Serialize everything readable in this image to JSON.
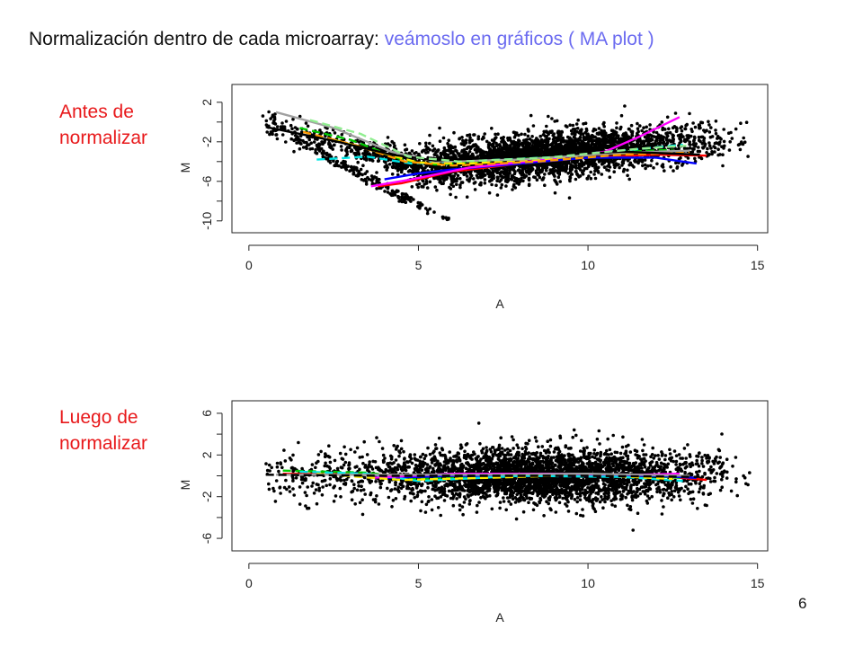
{
  "title": {
    "main": "Normalización dentro de cada microarray:",
    "accent": "veámoslo en gráficos ( MA plot )"
  },
  "colors": {
    "title": "#111111",
    "accent": "#6b6bf0",
    "panel_label": "#e8191b",
    "points": "#000000",
    "loess_lines": [
      "#ff0000",
      "#00c800",
      "#0000ff",
      "#00e5e5",
      "#ff00ff",
      "#ffee00",
      "#a0a0a0",
      "#ff9900",
      "#000000",
      "#90ee90"
    ]
  },
  "panels": [
    {
      "label_line1": "Antes de",
      "label_line2": "normalizar"
    },
    {
      "label_line1": "Luego de",
      "label_line2": "normalizar"
    }
  ],
  "page_number": "6",
  "chart_data": [
    {
      "type": "scatter",
      "xlabel": "A",
      "ylabel": "M",
      "xlim": [
        -0.5,
        15.3
      ],
      "ylim": [
        -11.2,
        3.8
      ],
      "x_ticks": [
        "0",
        "5",
        "10",
        "15"
      ],
      "x_tick_values": [
        0,
        5,
        10,
        15
      ],
      "y_ticks": [
        "2",
        "-2",
        "-6",
        "-10"
      ],
      "y_tick_values": [
        2,
        -2,
        -6,
        -10
      ],
      "y_minor_ticks": [
        0,
        -4,
        -8
      ],
      "grid": false,
      "legend": "none",
      "point_cloud": {
        "description_values": "dense black points, MA plot before normalization",
        "center_A": 8.5,
        "trend_M_at_A": [
          [
            1,
            -0.5
          ],
          [
            3,
            -2.5
          ],
          [
            5,
            -4.5
          ],
          [
            7,
            -4.0
          ],
          [
            9,
            -3.2
          ],
          [
            11,
            -2.6
          ],
          [
            13,
            -2.0
          ]
        ],
        "n_points": 3800
      },
      "loess_curves": [
        {
          "color": "#ff0000",
          "x": [
            3.8,
            4.5,
            5.0,
            6.0,
            8.0,
            10.0,
            12.0,
            13.5
          ],
          "y": [
            -6.5,
            -6.2,
            -5.8,
            -5.0,
            -4.2,
            -3.6,
            -3.3,
            -3.4
          ]
        },
        {
          "color": "#00c800",
          "x": [
            1.5,
            3.0,
            4.5,
            5.5,
            7.5,
            10.0,
            12.5
          ],
          "y": [
            -0.6,
            -1.8,
            -3.8,
            -4.3,
            -3.9,
            -3.2,
            -2.8
          ]
        },
        {
          "color": "#0000ff",
          "x": [
            4.0,
            5.0,
            6.0,
            8.0,
            10.0,
            12.0,
            13.2
          ],
          "y": [
            -5.8,
            -5.2,
            -4.8,
            -4.2,
            -3.6,
            -3.6,
            -4.2
          ]
        },
        {
          "color": "#00e5e5",
          "x": [
            2.0,
            3.5,
            4.8,
            6.0,
            8.5,
            11.0,
            12.8
          ],
          "y": [
            -3.8,
            -3.5,
            -4.2,
            -4.0,
            -3.6,
            -2.9,
            -2.3
          ]
        },
        {
          "color": "#ff00ff",
          "x": [
            3.6,
            4.8,
            6.5,
            8.5,
            10.5,
            11.5,
            12.7
          ],
          "y": [
            -6.5,
            -5.8,
            -4.6,
            -3.9,
            -3.0,
            -1.5,
            0.5
          ]
        },
        {
          "color": "#ffee00",
          "x": [
            2.5,
            3.8,
            5.0,
            6.5,
            8.5,
            10.5,
            12.5
          ],
          "y": [
            -1.8,
            -3.0,
            -4.1,
            -4.2,
            -3.8,
            -3.2,
            -3.0
          ]
        },
        {
          "color": "#a0a0a0",
          "x": [
            0.8,
            2.5,
            4.2,
            5.5,
            8.0,
            11.0,
            13.0
          ],
          "y": [
            1.0,
            -0.6,
            -3.0,
            -4.0,
            -3.8,
            -3.1,
            -2.9
          ]
        },
        {
          "color": "#ff9900",
          "x": [
            1.6,
            3.2,
            4.6,
            6.0,
            8.5,
            11.0,
            13.0
          ],
          "y": [
            -1.0,
            -2.4,
            -4.0,
            -4.4,
            -4.0,
            -3.3,
            -3.1
          ]
        },
        {
          "color": "#000000",
          "x": [
            0.5,
            2.5,
            4.2,
            5.5,
            8.0,
            11.0,
            13.3
          ],
          "y": [
            -0.5,
            -1.9,
            -3.3,
            -3.9,
            -3.5,
            -3.0,
            -3.3
          ]
        },
        {
          "color": "#90ee90",
          "x": [
            1.8,
            3.3,
            4.7,
            6.2,
            8.8,
            11.5,
            12.9
          ],
          "y": [
            0.2,
            -1.2,
            -3.5,
            -4.0,
            -3.6,
            -2.7,
            -2.4
          ]
        }
      ]
    },
    {
      "type": "scatter",
      "xlabel": "A",
      "ylabel": "M",
      "xlim": [
        -0.5,
        15.3
      ],
      "ylim": [
        -7.2,
        7.2
      ],
      "x_ticks": [
        "0",
        "5",
        "10",
        "15"
      ],
      "x_tick_values": [
        0,
        5,
        10,
        15
      ],
      "y_ticks": [
        "6",
        "2",
        "-2",
        "-6"
      ],
      "y_tick_values": [
        6,
        2,
        -2,
        -6
      ],
      "y_minor_ticks": [
        4,
        0,
        -4
      ],
      "grid": false,
      "legend": "none",
      "point_cloud": {
        "description_values": "dense black points, MA plot after normalization",
        "center_A": 8.5,
        "trend_M_at_A": [
          [
            1,
            0
          ],
          [
            5,
            0
          ],
          [
            9,
            0
          ],
          [
            13,
            0
          ]
        ],
        "n_points": 3800
      },
      "loess_curves": [
        {
          "color": "#ff0000",
          "x": [
            1.0,
            4.0,
            6.0,
            9.0,
            12.0,
            13.5
          ],
          "y": [
            0.2,
            0.1,
            0.0,
            0.0,
            0.0,
            -0.4
          ]
        },
        {
          "color": "#00c800",
          "x": [
            1.0,
            3.5,
            5.0,
            8.0,
            11.0,
            12.8
          ],
          "y": [
            0.5,
            0.3,
            -0.3,
            0.0,
            0.1,
            -0.2
          ]
        },
        {
          "color": "#0000ff",
          "x": [
            4.0,
            6.0,
            9.0,
            12.0,
            13.2
          ],
          "y": [
            -0.2,
            0.0,
            0.0,
            0.0,
            -0.2
          ]
        },
        {
          "color": "#00e5e5",
          "x": [
            1.5,
            3.5,
            5.0,
            8.0,
            11.0,
            12.8
          ],
          "y": [
            0.4,
            0.2,
            -0.5,
            0.0,
            -0.1,
            -0.5
          ]
        },
        {
          "color": "#ff00ff",
          "x": [
            3.6,
            6.0,
            9.0,
            11.5,
            12.7
          ],
          "y": [
            -0.2,
            0.2,
            0.2,
            0.1,
            0.2
          ]
        },
        {
          "color": "#ffee00",
          "x": [
            2.0,
            4.5,
            7.0,
            10.0,
            12.5
          ],
          "y": [
            0.2,
            -0.4,
            -0.2,
            0.1,
            -0.3
          ]
        },
        {
          "color": "#a0a0a0",
          "x": [
            0.8,
            4.0,
            7.0,
            10.0,
            13.0
          ],
          "y": [
            0.1,
            0.1,
            0.1,
            0.2,
            0.0
          ]
        },
        {
          "color": "#000000",
          "x": [
            0.5,
            4.0,
            7.0,
            10.0,
            13.3
          ],
          "y": [
            0.1,
            0.0,
            0.0,
            0.0,
            -0.1
          ]
        }
      ]
    }
  ]
}
